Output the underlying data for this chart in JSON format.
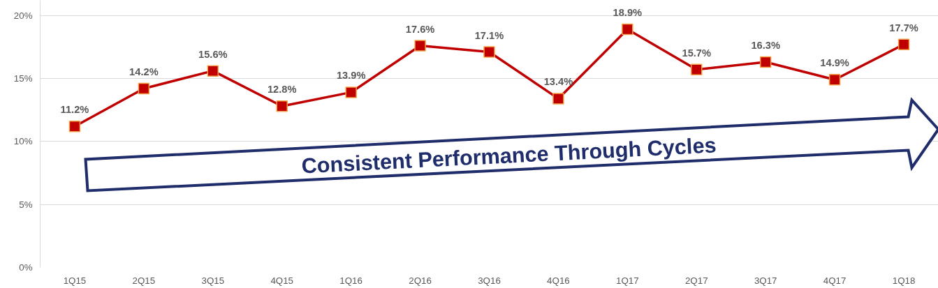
{
  "chart_data": {
    "type": "line",
    "categories": [
      "1Q15",
      "2Q15",
      "3Q15",
      "4Q15",
      "1Q16",
      "2Q16",
      "3Q16",
      "4Q16",
      "1Q17",
      "2Q17",
      "3Q17",
      "4Q17",
      "1Q18"
    ],
    "series": [
      {
        "color": "#c00000",
        "values": [
          11.2,
          14.2,
          15.6,
          12.8,
          13.9,
          17.6,
          17.1,
          13.4,
          18.9,
          15.7,
          16.3,
          14.9,
          17.7
        ],
        "value_labels": [
          "11.2%",
          "14.2%",
          "15.6%",
          "12.8%",
          "13.9%",
          "17.6%",
          "17.1%",
          "13.4%",
          "18.9%",
          "15.7%",
          "16.3%",
          "14.9%",
          "17.7%"
        ]
      }
    ],
    "ylim": [
      0,
      21.2
    ],
    "yticks": [
      {
        "value": 0,
        "label": "0%"
      },
      {
        "value": 5,
        "label": "5%"
      },
      {
        "value": 10,
        "label": "10%"
      },
      {
        "value": 15,
        "label": "15%"
      },
      {
        "value": 20,
        "label": "20%"
      }
    ],
    "annotations": [
      "Consistent Performance Through Cycles"
    ],
    "grid": "y",
    "marker": "square",
    "line_style": "solid"
  }
}
